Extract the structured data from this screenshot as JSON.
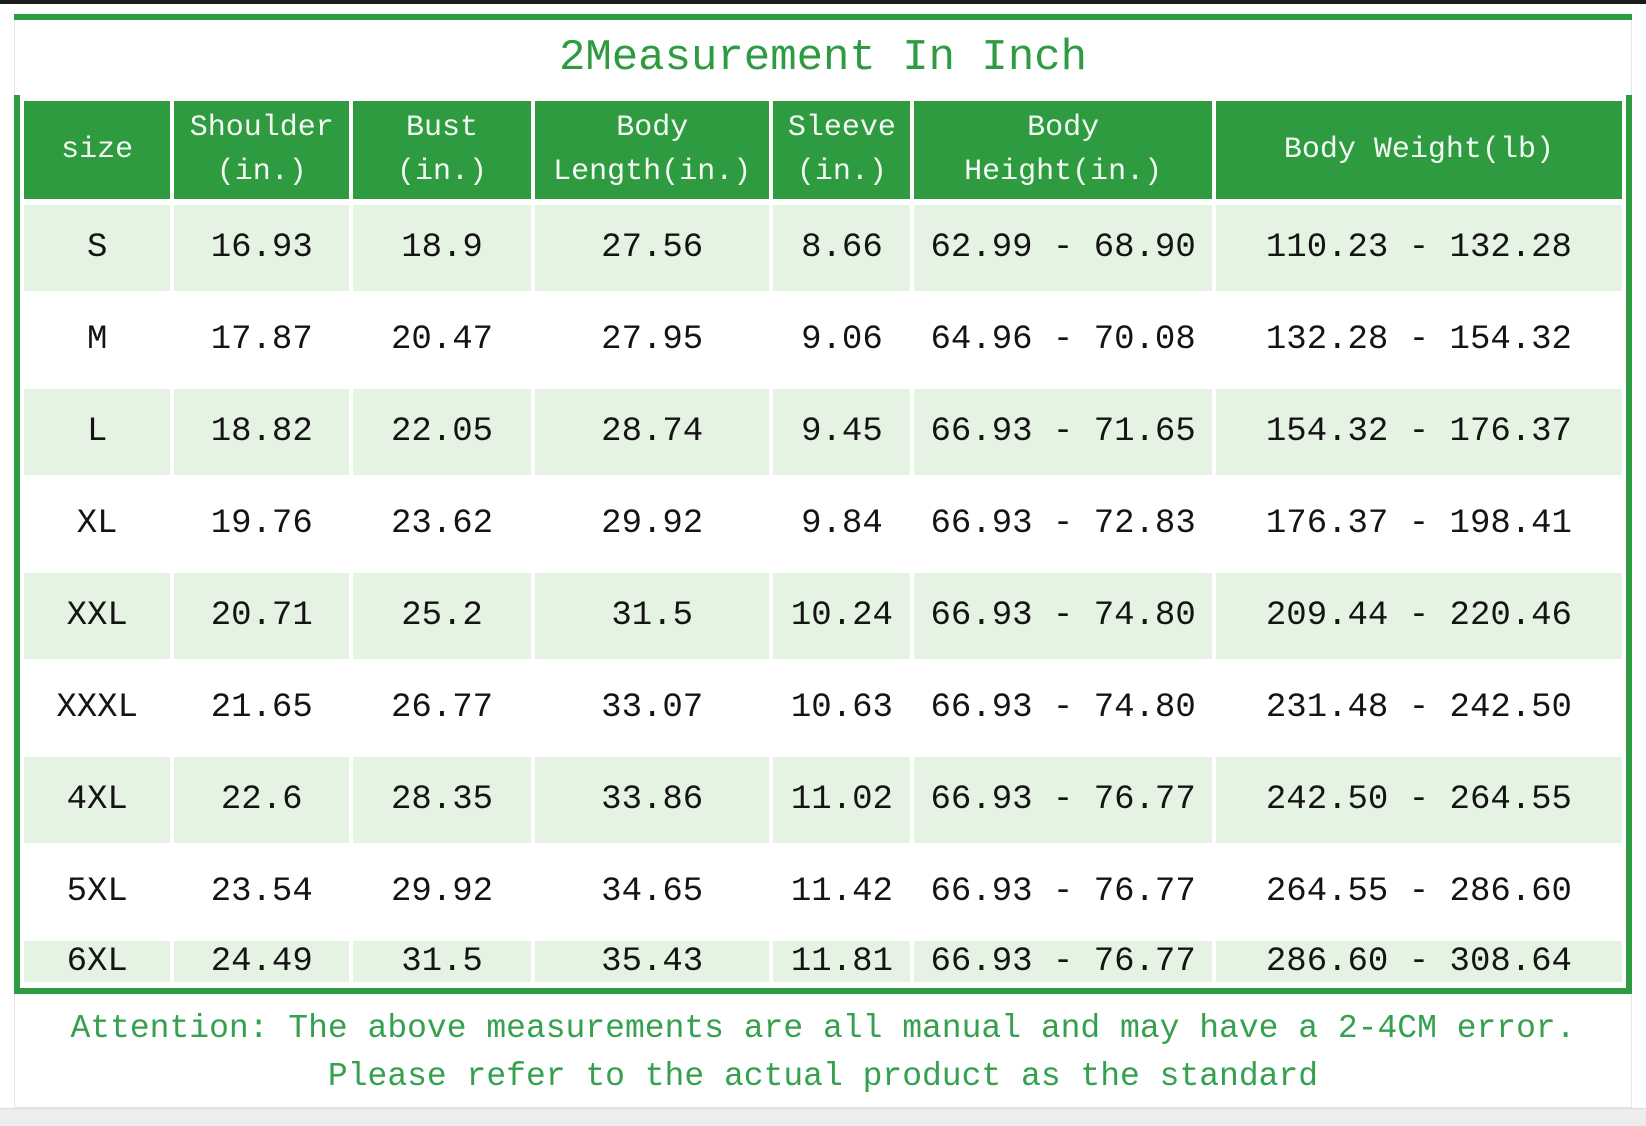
{
  "title": "2Measurement In Inch",
  "chart_data": {
    "type": "table",
    "title": "2Measurement In Inch",
    "columns": [
      "size",
      "Shoulder (in.)",
      "Bust (in.)",
      "Body Length(in.)",
      "Sleeve (in.)",
      "Body Height(in.)",
      "Body Weight(lb)"
    ],
    "column_lines": [
      [
        "size"
      ],
      [
        "Shoulder",
        "(in.)"
      ],
      [
        "Bust",
        "(in.)"
      ],
      [
        "Body",
        "Length(in.)"
      ],
      [
        "Sleeve",
        "(in.)"
      ],
      [
        "Body",
        "Height(in.)"
      ],
      [
        "Body Weight(lb)"
      ]
    ],
    "rows": [
      [
        "S",
        "16.93",
        "18.9",
        "27.56",
        "8.66",
        "62.99 - 68.90",
        "110.23 - 132.28"
      ],
      [
        "M",
        "17.87",
        "20.47",
        "27.95",
        "9.06",
        "64.96 - 70.08",
        "132.28 - 154.32"
      ],
      [
        "L",
        "18.82",
        "22.05",
        "28.74",
        "9.45",
        "66.93 - 71.65",
        "154.32 - 176.37"
      ],
      [
        "XL",
        "19.76",
        "23.62",
        "29.92",
        "9.84",
        "66.93 - 72.83",
        "176.37 - 198.41"
      ],
      [
        "XXL",
        "20.71",
        "25.2",
        "31.5",
        "10.24",
        "66.93 - 74.80",
        "209.44 - 220.46"
      ],
      [
        "XXXL",
        "21.65",
        "26.77",
        "33.07",
        "10.63",
        "66.93 - 74.80",
        "231.48 - 242.50"
      ],
      [
        "4XL",
        "22.6",
        "28.35",
        "33.86",
        "11.02",
        "66.93 - 76.77",
        "242.50 - 264.55"
      ],
      [
        "5XL",
        "23.54",
        "29.92",
        "34.65",
        "11.42",
        "66.93 - 76.77",
        "264.55 - 286.60"
      ],
      [
        "6XL",
        "24.49",
        "31.5",
        "35.43",
        "11.81",
        "66.93 - 76.77",
        "286.60 - 308.64"
      ]
    ]
  },
  "attention": {
    "line1": "Attention: The above measurements are all manual and may have a 2-4CM error.",
    "line2": "Please refer to the actual product as the standard"
  },
  "colors": {
    "header_green": "#2e9b41",
    "border_green": "#2e9b41",
    "row_light_green": "#e4f3e2",
    "title_green": "#2e9b41",
    "note_green": "#35a14f",
    "top_line_dark": "#1b1b1b",
    "bottom_strip_gray": "#ededed"
  }
}
